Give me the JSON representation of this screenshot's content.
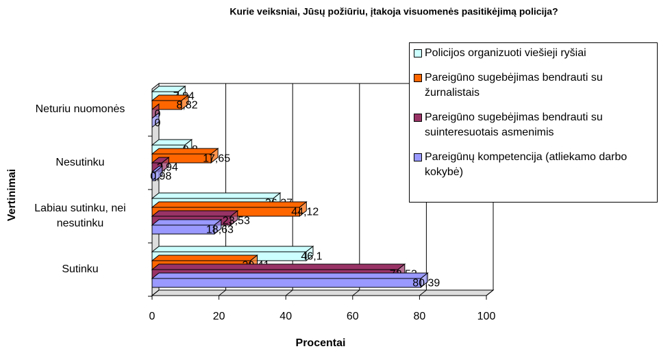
{
  "chart_data": {
    "type": "bar",
    "orientation": "horizontal",
    "title": "Kurie veiksniai, Jūsų požiūriu, įtakoja visuomenės pasitikėjimą policija?",
    "x_label": "Procentai",
    "y_label": "Vertinimai",
    "categories": [
      "Neturiu nuomonės",
      "Nesutinku",
      "Labiau sutinku, nei nesutinku",
      "Sutinku"
    ],
    "series": [
      {
        "name": "Policijos organizuoti viešieji ryšiai",
        "color": "#ccffff",
        "values": [
          7.84,
          9.8,
          36.27,
          46.1
        ],
        "value_labels": [
          "7,84",
          "9,8",
          "36,27",
          "46,1"
        ]
      },
      {
        "name": "Pareigūno sugebėjimas bendrauti su žurnalistais",
        "color": "#ff6600",
        "values": [
          8.82,
          17.65,
          44.12,
          29.41
        ],
        "value_labels": [
          "8,82",
          "17,65",
          "44,12",
          "29,41"
        ]
      },
      {
        "name": "Pareigūno sugebėjimas bendrauti su suinteresuotais asmenimis",
        "color": "#993366",
        "values": [
          0,
          2.94,
          23.53,
          73.53
        ],
        "value_labels": [
          "0",
          "2,94",
          "23,53",
          "73,53"
        ]
      },
      {
        "name": "Pareigūnų kompetencija (atliekamo darbo kokybė)",
        "color": "#9999ff",
        "values": [
          0,
          0.98,
          18.63,
          80.39
        ],
        "value_labels": [
          "0",
          "0,98",
          "18,63",
          "80,39"
        ]
      }
    ],
    "xlim": [
      0,
      100
    ],
    "xticks": [
      0,
      20,
      40,
      60,
      80,
      100
    ],
    "grid": true,
    "legend": "top-right"
  }
}
